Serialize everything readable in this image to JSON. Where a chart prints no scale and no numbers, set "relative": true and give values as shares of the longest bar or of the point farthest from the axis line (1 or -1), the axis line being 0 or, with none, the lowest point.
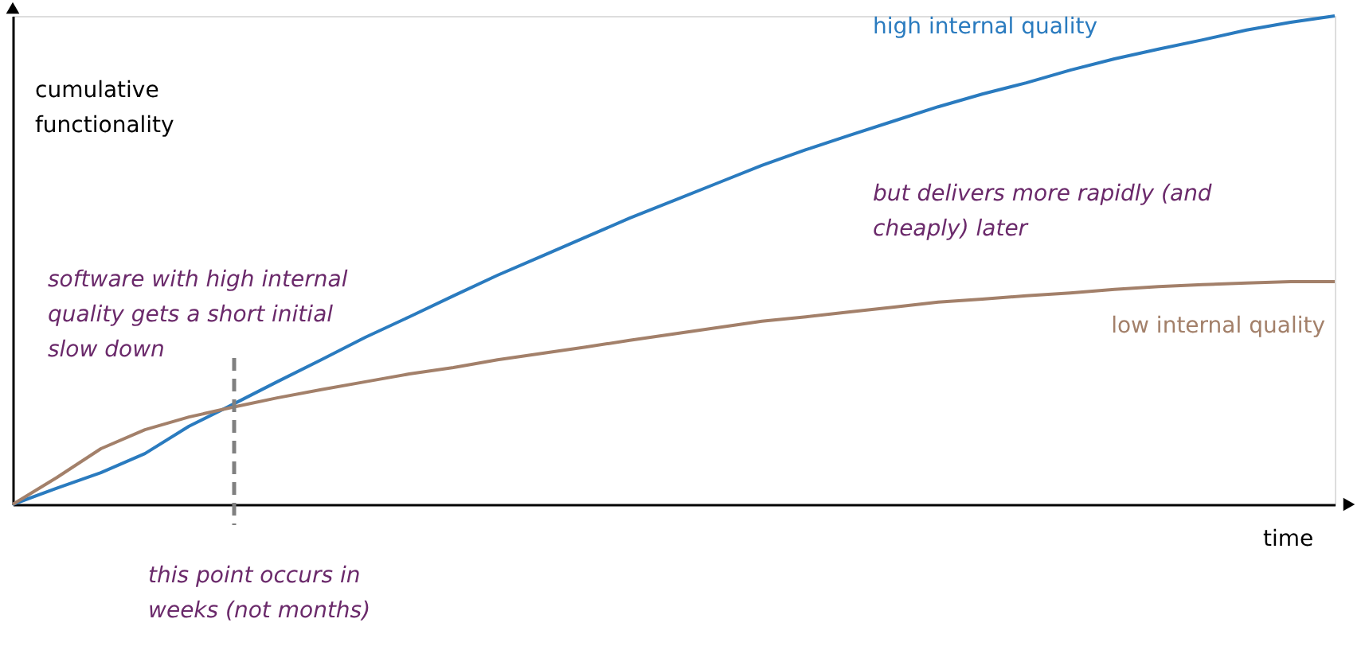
{
  "chart_data": {
    "type": "line",
    "relative": true,
    "xlabel": "time",
    "ylabel": "cumulative functionality",
    "grid": false,
    "legend": false,
    "categories": [
      null,
      null,
      null,
      null,
      null,
      null,
      null,
      null,
      null,
      null,
      null,
      null,
      null,
      null,
      null,
      null,
      null,
      null,
      null,
      null,
      null,
      null,
      null,
      null,
      null,
      null,
      null,
      null,
      null,
      null,
      null
    ],
    "series": [
      {
        "name": "high internal quality",
        "color": "#2a7bbf",
        "values": [
          0,
          0.033,
          0.065,
          0.104,
          0.16,
          0.205,
          0.251,
          0.296,
          0.342,
          0.384,
          0.427,
          0.469,
          0.508,
          0.547,
          0.586,
          0.622,
          0.658,
          0.694,
          0.726,
          0.756,
          0.785,
          0.814,
          0.84,
          0.863,
          0.889,
          0.912,
          0.932,
          0.951,
          0.971,
          0.987,
          1
        ]
      },
      {
        "name": "low internal quality",
        "color": "#a3806a",
        "values": [
          0,
          0.055,
          0.114,
          0.153,
          0.179,
          0.199,
          0.218,
          0.235,
          0.251,
          0.267,
          0.28,
          0.296,
          0.309,
          0.322,
          0.336,
          0.349,
          0.362,
          0.375,
          0.384,
          0.394,
          0.404,
          0.414,
          0.42,
          0.427,
          0.433,
          0.44,
          0.446,
          0.45,
          0.453,
          0.456,
          0.456
        ]
      }
    ],
    "annotations": [
      "software with high internal quality gets a short initial slow down",
      "this point occurs in weeks (not months)",
      "but delivers more rapidly (and cheaply) later"
    ]
  }
}
